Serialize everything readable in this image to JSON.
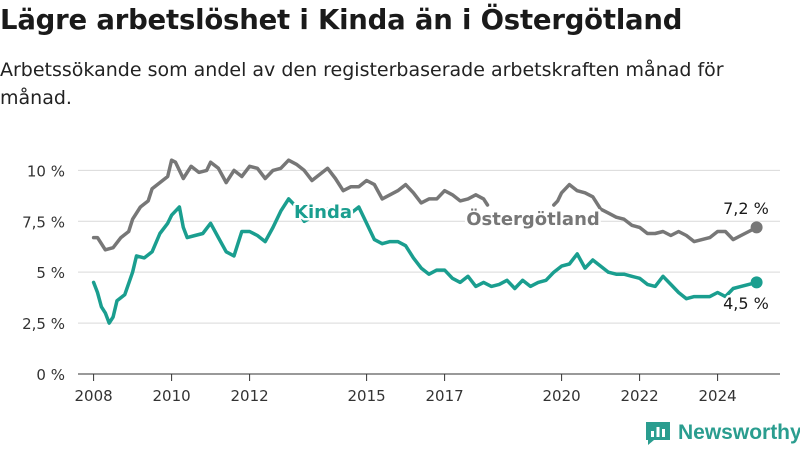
{
  "title": "Lägre arbetslöshet i Kinda än i Östergötland",
  "subtitle": "Arbetssökande som andel av den registerbaserade arbetskraften månad för månad.",
  "brand": {
    "name": "Newsworthy",
    "color": "#2a9d8f"
  },
  "chart_data": {
    "type": "line",
    "title": "Lägre arbetslöshet i Kinda än i Östergötland",
    "subtitle": "Arbetssökande som andel av den registerbaserade arbetskraften månad för månad.",
    "xlabel": "",
    "ylabel": "",
    "ylim": [
      0,
      11
    ],
    "y_ticks": [
      0,
      2.5,
      5,
      7.5,
      10
    ],
    "y_tick_labels": [
      "0 %",
      "2,5 %",
      "5 %",
      "7,5 %",
      "10 %"
    ],
    "xlim": [
      2007.6,
      2025.6
    ],
    "x_ticks": [
      2008,
      2010,
      2012,
      2015,
      2017,
      2020,
      2022,
      2024
    ],
    "x_tick_labels": [
      "2008",
      "2010",
      "2012",
      "2015",
      "2017",
      "2020",
      "2022",
      "2024"
    ],
    "grid": "horizontal",
    "legend": "inline labels",
    "series": [
      {
        "name": "Östergötland",
        "color": "#777777",
        "end_label": "7,2 %",
        "points": [
          [
            2008.0,
            6.7
          ],
          [
            2008.1,
            6.7
          ],
          [
            2008.3,
            6.1
          ],
          [
            2008.5,
            6.2
          ],
          [
            2008.7,
            6.7
          ],
          [
            2008.9,
            7.0
          ],
          [
            2009.0,
            7.6
          ],
          [
            2009.2,
            8.2
          ],
          [
            2009.4,
            8.5
          ],
          [
            2009.5,
            9.1
          ],
          [
            2009.7,
            9.4
          ],
          [
            2009.9,
            9.7
          ],
          [
            2010.0,
            10.5
          ],
          [
            2010.1,
            10.4
          ],
          [
            2010.3,
            9.6
          ],
          [
            2010.5,
            10.2
          ],
          [
            2010.7,
            9.9
          ],
          [
            2010.9,
            10.0
          ],
          [
            2011.0,
            10.4
          ],
          [
            2011.2,
            10.1
          ],
          [
            2011.4,
            9.4
          ],
          [
            2011.6,
            10.0
          ],
          [
            2011.8,
            9.7
          ],
          [
            2012.0,
            10.2
          ],
          [
            2012.2,
            10.1
          ],
          [
            2012.4,
            9.6
          ],
          [
            2012.6,
            10.0
          ],
          [
            2012.8,
            10.1
          ],
          [
            2013.0,
            10.5
          ],
          [
            2013.2,
            10.3
          ],
          [
            2013.4,
            10.0
          ],
          [
            2013.6,
            9.5
          ],
          [
            2013.8,
            9.8
          ],
          [
            2014.0,
            10.1
          ],
          [
            2014.2,
            9.6
          ],
          [
            2014.4,
            9.0
          ],
          [
            2014.6,
            9.2
          ],
          [
            2014.8,
            9.2
          ],
          [
            2015.0,
            9.5
          ],
          [
            2015.2,
            9.3
          ],
          [
            2015.4,
            8.6
          ],
          [
            2015.6,
            8.8
          ],
          [
            2015.8,
            9.0
          ],
          [
            2016.0,
            9.3
          ],
          [
            2016.2,
            8.9
          ],
          [
            2016.4,
            8.4
          ],
          [
            2016.6,
            8.6
          ],
          [
            2016.8,
            8.6
          ],
          [
            2017.0,
            9.0
          ],
          [
            2017.2,
            8.8
          ],
          [
            2017.4,
            8.5
          ],
          [
            2017.6,
            8.6
          ],
          [
            2017.8,
            8.8
          ],
          [
            2018.0,
            8.6
          ],
          [
            2018.1,
            8.3
          ],
          [
            2019.8,
            8.3
          ],
          [
            2019.9,
            8.5
          ],
          [
            2020.0,
            8.9
          ],
          [
            2020.2,
            9.3
          ],
          [
            2020.4,
            9.0
          ],
          [
            2020.6,
            8.9
          ],
          [
            2020.8,
            8.7
          ],
          [
            2021.0,
            8.1
          ],
          [
            2021.2,
            7.9
          ],
          [
            2021.4,
            7.7
          ],
          [
            2021.6,
            7.6
          ],
          [
            2021.8,
            7.3
          ],
          [
            2022.0,
            7.2
          ],
          [
            2022.2,
            6.9
          ],
          [
            2022.4,
            6.9
          ],
          [
            2022.6,
            7.0
          ],
          [
            2022.8,
            6.8
          ],
          [
            2023.0,
            7.0
          ],
          [
            2023.2,
            6.8
          ],
          [
            2023.4,
            6.5
          ],
          [
            2023.6,
            6.6
          ],
          [
            2023.8,
            6.7
          ],
          [
            2024.0,
            7.0
          ],
          [
            2024.2,
            7.0
          ],
          [
            2024.4,
            6.6
          ],
          [
            2024.6,
            6.8
          ],
          [
            2024.8,
            7.0
          ],
          [
            2025.0,
            7.2
          ]
        ]
      },
      {
        "name": "Kinda",
        "color": "#1a9e8f",
        "end_label": "4,5 %",
        "points": [
          [
            2008.0,
            4.5
          ],
          [
            2008.1,
            4.0
          ],
          [
            2008.2,
            3.3
          ],
          [
            2008.3,
            3.0
          ],
          [
            2008.4,
            2.5
          ],
          [
            2008.5,
            2.8
          ],
          [
            2008.6,
            3.6
          ],
          [
            2008.8,
            3.9
          ],
          [
            2009.0,
            5.0
          ],
          [
            2009.1,
            5.8
          ],
          [
            2009.3,
            5.7
          ],
          [
            2009.5,
            6.0
          ],
          [
            2009.7,
            6.9
          ],
          [
            2009.9,
            7.4
          ],
          [
            2010.0,
            7.8
          ],
          [
            2010.1,
            8.0
          ],
          [
            2010.2,
            8.2
          ],
          [
            2010.3,
            7.2
          ],
          [
            2010.4,
            6.7
          ],
          [
            2010.6,
            6.8
          ],
          [
            2010.8,
            6.9
          ],
          [
            2011.0,
            7.4
          ],
          [
            2011.2,
            6.7
          ],
          [
            2011.4,
            6.0
          ],
          [
            2011.6,
            5.8
          ],
          [
            2011.8,
            7.0
          ],
          [
            2012.0,
            7.0
          ],
          [
            2012.2,
            6.8
          ],
          [
            2012.4,
            6.5
          ],
          [
            2012.6,
            7.2
          ],
          [
            2012.8,
            8.0
          ],
          [
            2013.0,
            8.6
          ],
          [
            2013.2,
            8.2
          ],
          [
            2013.4,
            7.5
          ],
          [
            2013.6,
            7.7
          ],
          [
            2013.8,
            7.9
          ],
          [
            2014.0,
            8.1
          ],
          [
            2014.2,
            8.2
          ],
          [
            2014.4,
            8.0
          ],
          [
            2014.6,
            7.9
          ],
          [
            2014.8,
            8.2
          ],
          [
            2015.0,
            7.4
          ],
          [
            2015.2,
            6.6
          ],
          [
            2015.4,
            6.4
          ],
          [
            2015.6,
            6.5
          ],
          [
            2015.8,
            6.5
          ],
          [
            2016.0,
            6.3
          ],
          [
            2016.2,
            5.7
          ],
          [
            2016.4,
            5.2
          ],
          [
            2016.6,
            4.9
          ],
          [
            2016.8,
            5.1
          ],
          [
            2017.0,
            5.1
          ],
          [
            2017.2,
            4.7
          ],
          [
            2017.4,
            4.5
          ],
          [
            2017.6,
            4.8
          ],
          [
            2017.8,
            4.3
          ],
          [
            2018.0,
            4.5
          ],
          [
            2018.2,
            4.3
          ],
          [
            2018.4,
            4.4
          ],
          [
            2018.6,
            4.6
          ],
          [
            2018.8,
            4.2
          ],
          [
            2019.0,
            4.6
          ],
          [
            2019.2,
            4.3
          ],
          [
            2019.4,
            4.5
          ],
          [
            2019.6,
            4.6
          ],
          [
            2019.8,
            5.0
          ],
          [
            2020.0,
            5.3
          ],
          [
            2020.2,
            5.4
          ],
          [
            2020.4,
            5.9
          ],
          [
            2020.6,
            5.2
          ],
          [
            2020.8,
            5.6
          ],
          [
            2021.0,
            5.3
          ],
          [
            2021.2,
            5.0
          ],
          [
            2021.4,
            4.9
          ],
          [
            2021.6,
            4.9
          ],
          [
            2021.8,
            4.8
          ],
          [
            2022.0,
            4.7
          ],
          [
            2022.2,
            4.4
          ],
          [
            2022.4,
            4.3
          ],
          [
            2022.6,
            4.8
          ],
          [
            2022.8,
            4.4
          ],
          [
            2023.0,
            4.0
          ],
          [
            2023.2,
            3.7
          ],
          [
            2023.4,
            3.8
          ],
          [
            2023.6,
            3.8
          ],
          [
            2023.8,
            3.8
          ],
          [
            2024.0,
            4.0
          ],
          [
            2024.2,
            3.8
          ],
          [
            2024.4,
            4.2
          ],
          [
            2024.6,
            4.3
          ],
          [
            2024.8,
            4.4
          ],
          [
            2025.0,
            4.5
          ]
        ]
      }
    ]
  }
}
